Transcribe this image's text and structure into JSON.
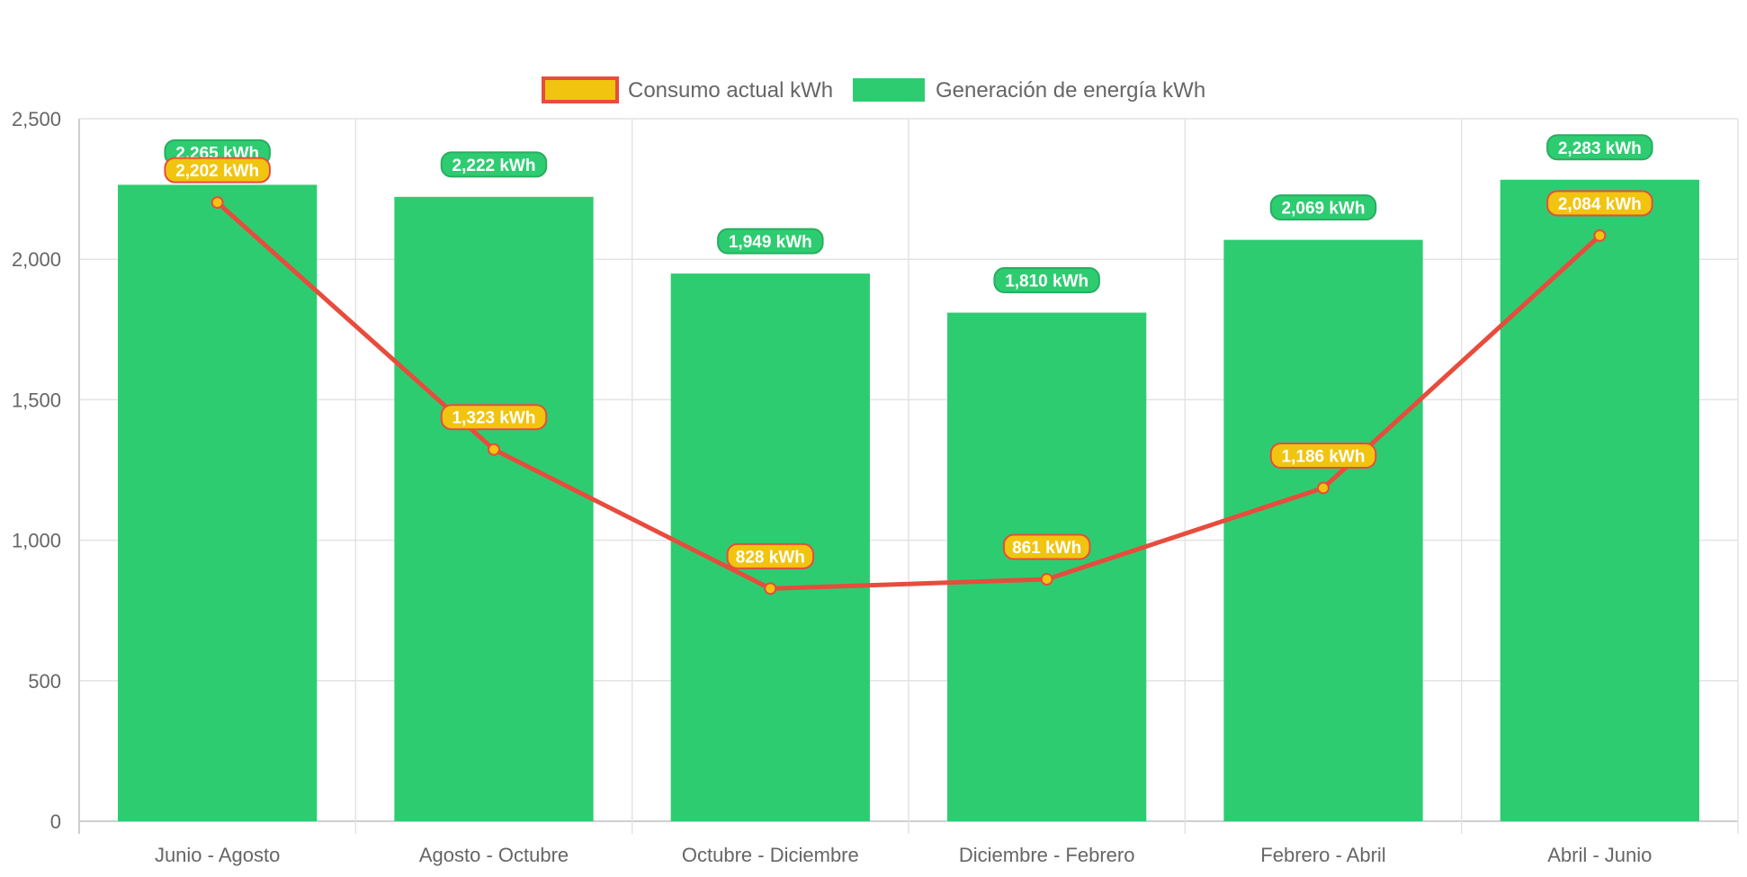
{
  "chart_data": {
    "type": "bar",
    "categories": [
      "Junio - Agosto",
      "Agosto - Octubre",
      "Octubre - Diciembre",
      "Diciembre - Febrero",
      "Febrero - Abril",
      "Abril - Junio"
    ],
    "series": [
      {
        "name": "Consumo actual kWh",
        "type": "line",
        "values": [
          2202,
          1323,
          828,
          861,
          1186,
          2084
        ],
        "labels": [
          "2,202 kWh",
          "1,323 kWh",
          "828 kWh",
          "861 kWh",
          "1,186 kWh",
          "2,084 kWh"
        ],
        "color": "#e74c3c",
        "fill_color": "#f1c40f"
      },
      {
        "name": "Generación de energía kWh",
        "type": "bar",
        "values": [
          2265,
          2222,
          1949,
          1810,
          2069,
          2283
        ],
        "labels": [
          "2,265 kWh",
          "2,222 kWh",
          "1,949 kWh",
          "1,810 kWh",
          "2,069 kWh",
          "2,283 kWh"
        ],
        "color": "#2ecc71"
      }
    ],
    "y_ticks": [
      "0",
      "500",
      "1,000",
      "1,500",
      "2,000",
      "2,500"
    ],
    "ylim": [
      0,
      2500
    ],
    "grid": true,
    "legend_position": "top-center"
  }
}
